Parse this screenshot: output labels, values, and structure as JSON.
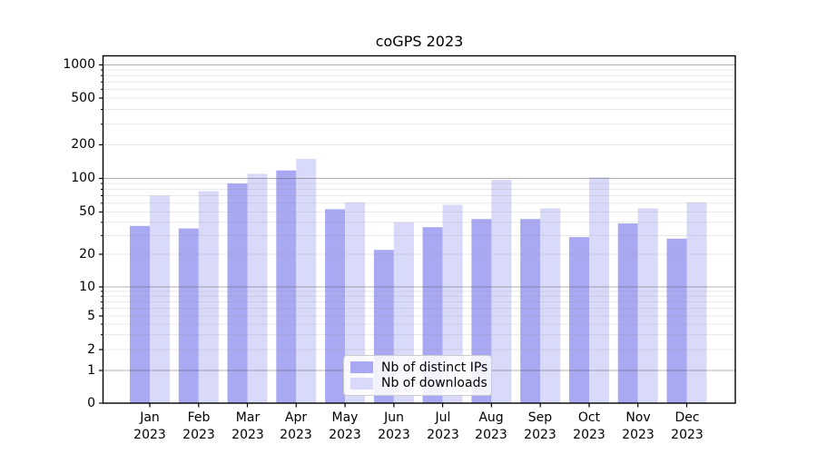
{
  "title": "coGPS 2023",
  "colors": {
    "distinct_ips": "#a8a8f3",
    "downloads": "#d9d9f9",
    "grid_major": "#b0b0b0",
    "grid_minor": "#e4e4e4",
    "axis": "#000000",
    "legend_border": "#cccccc"
  },
  "legend": {
    "items": [
      {
        "label": "Nb of distinct IPs",
        "color_key": "distinct_ips"
      },
      {
        "label": "Nb of downloads",
        "color_key": "downloads"
      }
    ]
  },
  "y_axis": {
    "tick_values": [
      0,
      1,
      2,
      5,
      10,
      20,
      50,
      100,
      200,
      500,
      1000
    ],
    "tick_labels": [
      "0",
      "1",
      "2",
      "5",
      "10",
      "20",
      "50",
      "100",
      "200",
      "500",
      "1000"
    ]
  },
  "x_axis": {
    "months": [
      "Jan",
      "Feb",
      "Mar",
      "Apr",
      "May",
      "Jun",
      "Jul",
      "Aug",
      "Sep",
      "Oct",
      "Nov",
      "Dec"
    ],
    "year": "2023"
  },
  "chart_data": {
    "type": "bar",
    "title": "coGPS 2023",
    "categories": [
      "Jan 2023",
      "Feb 2023",
      "Mar 2023",
      "Apr 2023",
      "May 2023",
      "Jun 2023",
      "Jul 2023",
      "Aug 2023",
      "Sep 2023",
      "Oct 2023",
      "Nov 2023",
      "Dec 2023"
    ],
    "series": [
      {
        "name": "Nb of distinct IPs",
        "values": [
          37,
          35,
          90,
          118,
          53,
          22,
          36,
          43,
          43,
          29,
          39,
          28
        ]
      },
      {
        "name": "Nb of downloads",
        "values": [
          70,
          77,
          110,
          150,
          61,
          40,
          58,
          97,
          54,
          102,
          54,
          61
        ]
      }
    ],
    "yscale": "symlog",
    "yticks": [
      0,
      1,
      2,
      5,
      10,
      20,
      50,
      100,
      200,
      500,
      1000
    ],
    "ylim": [
      0,
      1200
    ],
    "grid": true,
    "legend_position": "lower center",
    "bar_grouping": "grouped-pair"
  }
}
